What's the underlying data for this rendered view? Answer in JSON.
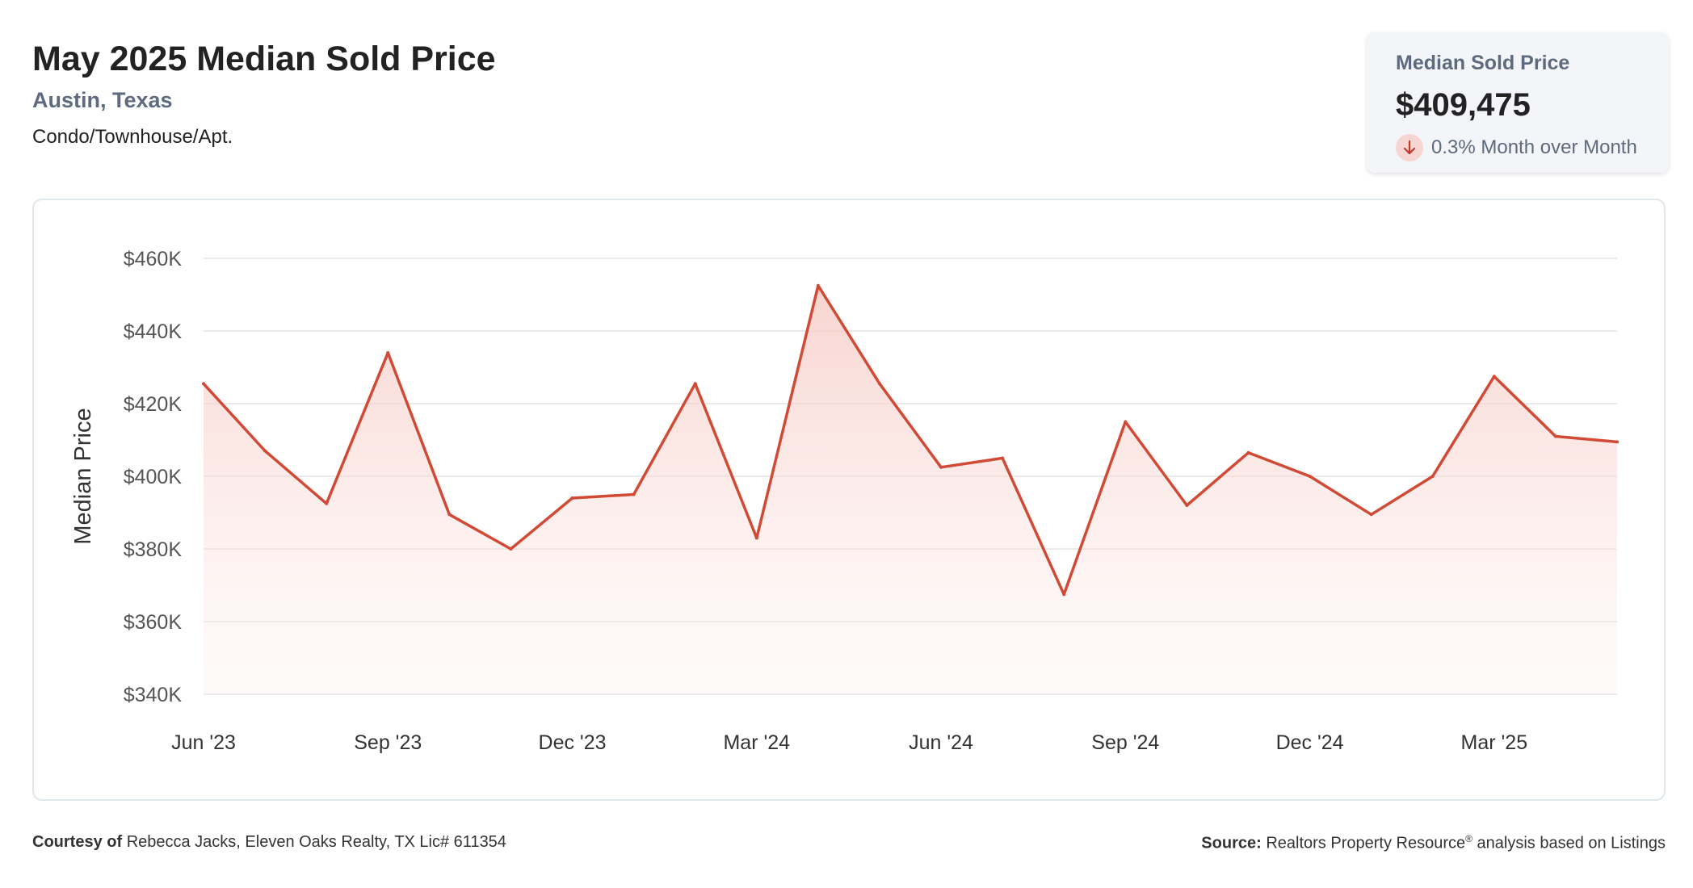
{
  "header": {
    "title": "May 2025 Median Sold Price",
    "location": "Austin, Texas",
    "property_type": "Condo/Townhouse/Apt."
  },
  "stat_card": {
    "label": "Median Sold Price",
    "value": "$409,475",
    "change_text": "0.3% Month over Month",
    "change_direction": "down",
    "icon": "arrow-down-icon"
  },
  "colors": {
    "line": "#d14a36",
    "fill": "#f9d6d2",
    "grid": "#e3e3e3",
    "card_bg": "#f3f5f8",
    "accent_text": "#5e6a7d"
  },
  "chart_data": {
    "type": "area",
    "ylabel": "Median Price",
    "xlabel": "",
    "ylim": [
      340000,
      460000
    ],
    "y_ticks": [
      340000,
      360000,
      380000,
      400000,
      420000,
      440000,
      460000
    ],
    "y_tick_labels": [
      "$340K",
      "$360K",
      "$380K",
      "$400K",
      "$420K",
      "$440K",
      "$460K"
    ],
    "x_tick_labels": [
      "Jun '23",
      "Sep '23",
      "Dec '23",
      "Mar '24",
      "Jun '24",
      "Sep '24",
      "Dec '24",
      "Mar '25"
    ],
    "x_tick_index": [
      0,
      3,
      6,
      9,
      12,
      15,
      18,
      21
    ],
    "grid": true,
    "x": [
      "2023-06",
      "2023-07",
      "2023-08",
      "2023-09",
      "2023-10",
      "2023-11",
      "2023-12",
      "2024-01",
      "2024-02",
      "2024-03",
      "2024-04",
      "2024-05",
      "2024-06",
      "2024-07",
      "2024-08",
      "2024-09",
      "2024-10",
      "2024-11",
      "2024-12",
      "2025-01",
      "2025-02",
      "2025-03",
      "2025-04",
      "2025-05"
    ],
    "values": [
      425500,
      407000,
      392500,
      434000,
      389500,
      380000,
      394000,
      395000,
      425500,
      383000,
      452500,
      425500,
      402500,
      405000,
      367500,
      415000,
      392000,
      406500,
      400000,
      389500,
      400000,
      427500,
      411000,
      409475
    ]
  },
  "footer": {
    "courtesy_label": "Courtesy of",
    "courtesy_text": "Rebecca Jacks, Eleven Oaks Realty, TX Lic# 611354",
    "source_label": "Source:",
    "source_text_a": "Realtors Property Resource",
    "source_mark": "®",
    "source_text_b": " analysis based on Listings"
  }
}
